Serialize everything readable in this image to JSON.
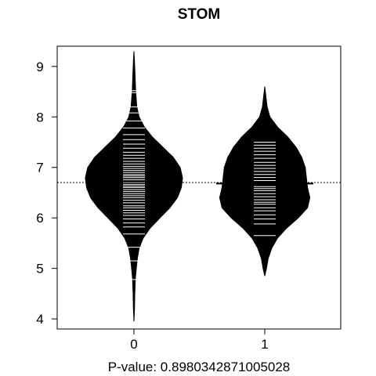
{
  "chart_data": {
    "type": "beanplot",
    "title": "STOM",
    "xlabel": "P-value: 0.8980342871005028",
    "ylabel": "",
    "ylim": [
      3.8,
      9.4
    ],
    "yticks": [
      4,
      5,
      6,
      7,
      8,
      9
    ],
    "categories": [
      "0",
      "1"
    ],
    "overall_mean_line": 6.7,
    "bean_color": "#000000",
    "line_color": "#ffffff",
    "series": [
      {
        "category": "0",
        "mean": 6.72,
        "density": [
          [
            3.95,
            0.0
          ],
          [
            4.2,
            0.01
          ],
          [
            4.5,
            0.015
          ],
          [
            4.8,
            0.025
          ],
          [
            5.0,
            0.04
          ],
          [
            5.2,
            0.06
          ],
          [
            5.4,
            0.09
          ],
          [
            5.6,
            0.16
          ],
          [
            5.8,
            0.28
          ],
          [
            6.0,
            0.45
          ],
          [
            6.2,
            0.62
          ],
          [
            6.4,
            0.75
          ],
          [
            6.6,
            0.82
          ],
          [
            6.8,
            0.84
          ],
          [
            7.0,
            0.8
          ],
          [
            7.2,
            0.68
          ],
          [
            7.4,
            0.5
          ],
          [
            7.6,
            0.32
          ],
          [
            7.8,
            0.18
          ],
          [
            8.0,
            0.09
          ],
          [
            8.2,
            0.05
          ],
          [
            8.5,
            0.03
          ],
          [
            8.8,
            0.02
          ],
          [
            9.1,
            0.01
          ],
          [
            9.3,
            0.0
          ]
        ],
        "observations": [
          4.78,
          5.15,
          5.42,
          5.68,
          5.82,
          5.9,
          5.98,
          6.05,
          6.1,
          6.15,
          6.2,
          6.24,
          6.3,
          6.35,
          6.4,
          6.44,
          6.48,
          6.52,
          6.56,
          6.6,
          6.63,
          6.66,
          6.7,
          6.73,
          6.76,
          6.8,
          6.83,
          6.86,
          6.9,
          6.94,
          6.98,
          7.02,
          7.07,
          7.12,
          7.18,
          7.24,
          7.3,
          7.38,
          7.46,
          7.55,
          7.65,
          7.78,
          7.92,
          8.08,
          8.2,
          8.48,
          8.52
        ]
      },
      {
        "category": "1",
        "mean": 6.68,
        "density": [
          [
            4.85,
            0.0
          ],
          [
            5.0,
            0.03
          ],
          [
            5.2,
            0.06
          ],
          [
            5.4,
            0.12
          ],
          [
            5.6,
            0.22
          ],
          [
            5.8,
            0.38
          ],
          [
            6.0,
            0.58
          ],
          [
            6.2,
            0.74
          ],
          [
            6.4,
            0.78
          ],
          [
            6.6,
            0.74
          ],
          [
            6.8,
            0.72
          ],
          [
            7.0,
            0.7
          ],
          [
            7.2,
            0.64
          ],
          [
            7.4,
            0.54
          ],
          [
            7.6,
            0.4
          ],
          [
            7.8,
            0.22
          ],
          [
            8.0,
            0.09
          ],
          [
            8.2,
            0.04
          ],
          [
            8.4,
            0.02
          ],
          [
            8.6,
            0.0
          ]
        ],
        "observations": [
          5.65,
          5.88,
          5.98,
          6.06,
          6.14,
          6.2,
          6.27,
          6.31,
          6.36,
          6.42,
          6.48,
          6.54,
          6.58,
          6.62,
          6.68,
          6.74,
          6.8,
          6.86,
          6.92,
          6.98,
          7.04,
          7.1,
          7.18,
          7.25,
          7.32,
          7.38,
          7.44,
          7.5
        ]
      }
    ]
  }
}
